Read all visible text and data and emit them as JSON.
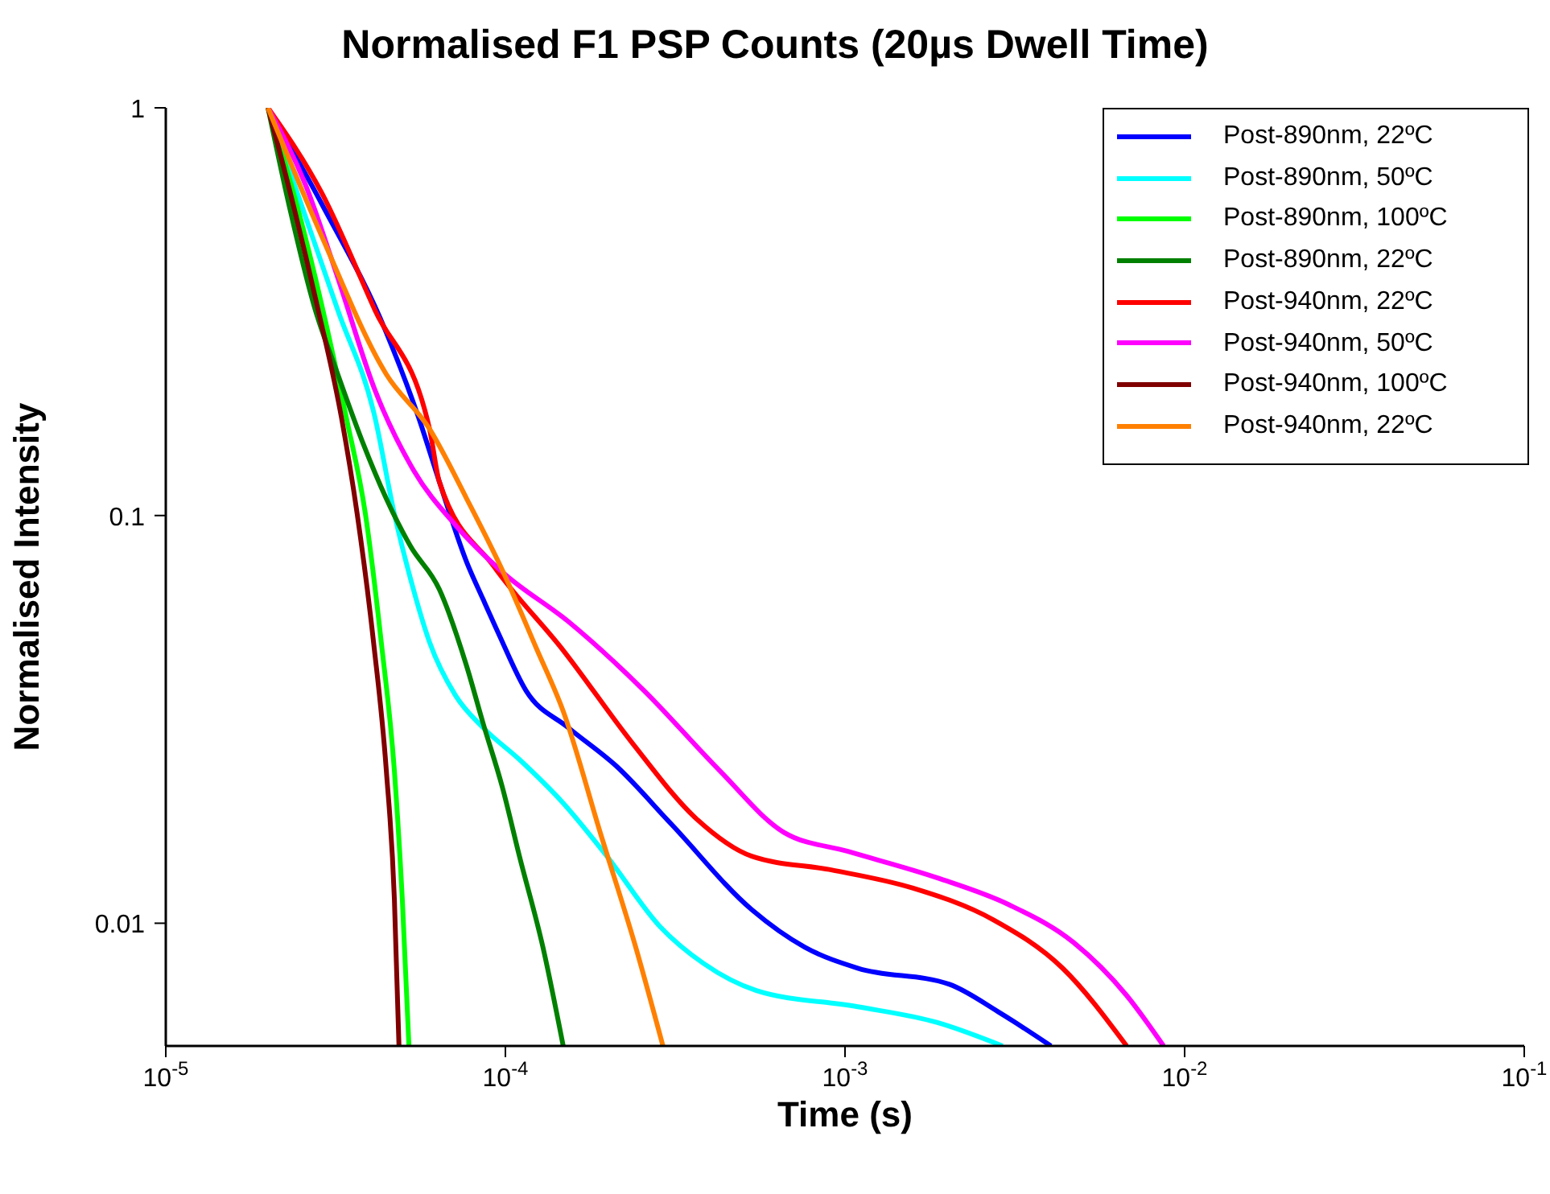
{
  "chart_data": {
    "type": "line",
    "title": "Normalised F1 PSP Counts (20µs Dwell Time)",
    "xlabel": "Time (s)",
    "ylabel": "Normalised Intensity",
    "log": "xy",
    "grid": false,
    "legend": "top right",
    "marker": "none",
    "line_style": "solid",
    "xlim": [
      1e-05,
      0.1
    ],
    "xticks": [
      {
        "value": 1e-05,
        "label": "10$^{-5}$"
      },
      {
        "value": 0.0001,
        "label": "10$^{-4}$"
      },
      {
        "value": 0.001,
        "label": "10$^{-3}$"
      },
      {
        "value": 0.01,
        "label": "10$^{-2}$"
      },
      {
        "value": 0.1,
        "label": "10$^{-1}$"
      }
    ],
    "ylim": [
      0.005,
      1
    ],
    "yticks": [
      0.01,
      0.1,
      1
    ],
    "series": [
      {
        "name": "Post-890nm, 22ºC",
        "color": "#0000ff",
        "x": [
          2e-05,
          2.88e-05,
          4.46e-05,
          5.55e-05,
          6.39e-05,
          7.69e-05,
          8.59e-05,
          9.57e-05,
          0.000115,
          0.000153,
          0.000212,
          0.000308,
          0.000531,
          0.000762,
          0.00109,
          0.00203,
          0.00282,
          0.00404
        ],
        "values": [
          1,
          0.581,
          0.281,
          0.174,
          0.121,
          0.0769,
          0.0624,
          0.0511,
          0.0372,
          0.0302,
          0.0243,
          0.0175,
          0.0108,
          0.00873,
          0.00776,
          0.00708,
          0.00607,
          0.005
        ]
      },
      {
        "name": "Post-890nm, 50ºC",
        "color": "#00ffff",
        "x": [
          2e-05,
          2.58e-05,
          3.21e-05,
          4.13e-05,
          4.71e-05,
          5.25e-05,
          5.98e-05,
          7.13e-05,
          8.59e-05,
          0.00011,
          0.000148,
          0.000199,
          0.000285,
          0.000383,
          0.000548,
          0.00109,
          0.00188,
          0.00291
        ],
        "values": [
          1,
          0.54,
          0.319,
          0.174,
          0.101,
          0.0702,
          0.0489,
          0.0362,
          0.0302,
          0.0252,
          0.0197,
          0.0146,
          0.00982,
          0.00797,
          0.00684,
          0.00624,
          0.0057,
          0.005
        ]
      },
      {
        "name": "Post-890nm, 100ºC",
        "color": "#00ff00",
        "x": [
          2e-05,
          2.45e-05,
          2.88e-05,
          3.4e-05,
          3.87e-05,
          4.31e-05,
          4.71e-05,
          4.97e-05,
          5.2e-05
        ],
        "values": [
          1,
          0.565,
          0.328,
          0.174,
          0.101,
          0.0489,
          0.0237,
          0.0115,
          0.005
        ]
      },
      {
        "name": "Post-890nm, 22ºC",
        "color": "#008000",
        "x": [
          2e-05,
          2.32e-05,
          2.73e-05,
          3.21e-05,
          3.79e-05,
          4.46e-05,
          5.25e-05,
          6.39e-05,
          7.69e-05,
          8.59e-05,
          9.79e-05,
          0.00011,
          0.000129,
          0.000148
        ],
        "values": [
          1,
          0.565,
          0.328,
          0.222,
          0.152,
          0.11,
          0.0842,
          0.0659,
          0.0427,
          0.031,
          0.0216,
          0.0146,
          0.00873,
          0.005
        ]
      },
      {
        "name": "Post-940nm, 22ºC",
        "color": "#ff0000",
        "x": [
          2e-05,
          2.88e-05,
          4.13e-05,
          5.98e-05,
          6.39e-05,
          9.27e-05,
          0.000148,
          0.000237,
          0.000366,
          0.000531,
          0.000916,
          0.00158,
          0.00273,
          0.00437,
          0.00675
        ],
        "values": [
          1,
          0.618,
          0.319,
          0.163,
          0.121,
          0.0748,
          0.0467,
          0.0276,
          0.018,
          0.0146,
          0.0135,
          0.0122,
          0.0102,
          0.00776,
          0.005
        ]
      },
      {
        "name": "Post-940nm, 50ºC",
        "color": "#ff00ff",
        "x": [
          2e-05,
          2.58e-05,
          3.21e-05,
          4.13e-05,
          5.37e-05,
          7.13e-05,
          9.89e-05,
          0.000153,
          0.000256,
          0.000427,
          0.000661,
          0.00102,
          0.00188,
          0.00304,
          0.00471,
          0.00675,
          0.00867
        ],
        "values": [
          1,
          0.647,
          0.383,
          0.203,
          0.129,
          0.0947,
          0.0722,
          0.055,
          0.0372,
          0.0237,
          0.0167,
          0.015,
          0.0129,
          0.0111,
          0.00897,
          0.00665,
          0.005
        ]
      },
      {
        "name": "Post-940nm, 100ºC",
        "color": "#800000",
        "x": [
          2e-05,
          2.39e-05,
          2.79e-05,
          3.29e-05,
          3.66e-05,
          4.09e-05,
          4.46e-05,
          4.71e-05,
          4.86e-05
        ],
        "values": [
          1,
          0.565,
          0.328,
          0.174,
          0.101,
          0.0489,
          0.0237,
          0.0115,
          0.005
        ]
      },
      {
        "name": "Post-940nm, 22ºC",
        "color": "#ff8000",
        "x": [
          2e-05,
          2.88e-05,
          4.46e-05,
          5.98e-05,
          7.69e-05,
          9.89e-05,
          0.000123,
          0.000148,
          0.000191,
          0.000242,
          0.000291
        ],
        "values": [
          1,
          0.484,
          0.222,
          0.163,
          0.11,
          0.0722,
          0.0475,
          0.0331,
          0.0165,
          0.00873,
          0.005
        ]
      }
    ]
  }
}
